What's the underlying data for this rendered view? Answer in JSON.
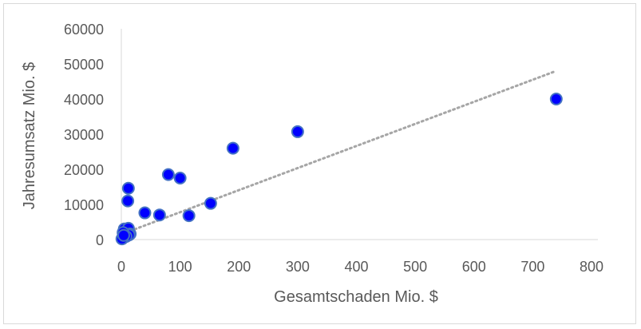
{
  "chart_data": {
    "type": "scatter",
    "title": "",
    "xlabel": "Gesamtschaden Mio. $",
    "ylabel": "Jahresumsatz Mio. $",
    "xlim": [
      0,
      800
    ],
    "ylim": [
      0,
      60000
    ],
    "x_ticks": [
      0,
      100,
      200,
      300,
      400,
      500,
      600,
      700,
      800
    ],
    "y_ticks": [
      0,
      10000,
      20000,
      30000,
      40000,
      50000,
      60000
    ],
    "x_tick_labels": [
      "0",
      "100",
      "200",
      "300",
      "400",
      "500",
      "600",
      "700",
      "800"
    ],
    "y_tick_labels": [
      "0",
      "10000",
      "20000",
      "30000",
      "40000",
      "50000",
      "60000"
    ],
    "grid": false,
    "legend": "none",
    "marker_color": "#0000ff",
    "marker_edge_color": "#4472c4",
    "trendline": {
      "type": "linear",
      "style": "dotted",
      "color": "#a6a6a6",
      "x": [
        0,
        740
      ],
      "y": [
        1500,
        48000
      ]
    },
    "points": [
      {
        "x": 740,
        "y": 40000
      },
      {
        "x": 300,
        "y": 30700
      },
      {
        "x": 190,
        "y": 26000
      },
      {
        "x": 80,
        "y": 18500
      },
      {
        "x": 100,
        "y": 17500
      },
      {
        "x": 12,
        "y": 14600
      },
      {
        "x": 11,
        "y": 11000
      },
      {
        "x": 40,
        "y": 7600
      },
      {
        "x": 65,
        "y": 7000
      },
      {
        "x": 115,
        "y": 6800
      },
      {
        "x": 152,
        "y": 10300
      },
      {
        "x": 5,
        "y": 3000
      },
      {
        "x": 12,
        "y": 3200
      },
      {
        "x": 15,
        "y": 1600
      },
      {
        "x": 13,
        "y": 1300
      },
      {
        "x": 8,
        "y": 900
      },
      {
        "x": 3,
        "y": 2000
      },
      {
        "x": 2,
        "y": 300
      },
      {
        "x": 1,
        "y": 200
      },
      {
        "x": 4,
        "y": 1200
      }
    ]
  }
}
